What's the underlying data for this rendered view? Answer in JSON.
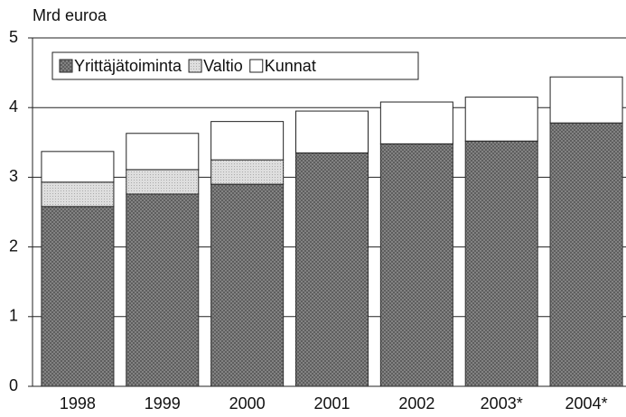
{
  "chart_data": {
    "type": "stacked_bar",
    "y_label": "Mrd euroa",
    "categories": [
      "1998",
      "1999",
      "2000",
      "2001",
      "2002",
      "2003*",
      "2004*"
    ],
    "series": [
      {
        "name": "Yrittäjätoiminta",
        "color": "#8c8c8c",
        "values": [
          2.58,
          2.76,
          2.9,
          3.35,
          3.48,
          3.52,
          3.78
        ]
      },
      {
        "name": "Valtio",
        "color": "#dedede",
        "values": [
          0.35,
          0.35,
          0.35,
          0,
          0,
          0,
          0
        ]
      },
      {
        "name": "Kunnat",
        "color": "#ffffff",
        "values": [
          0.44,
          0.52,
          0.55,
          0.6,
          0.6,
          0.63,
          0.66
        ]
      }
    ],
    "ylim": [
      0,
      5
    ],
    "yticks": [
      0,
      1,
      2,
      3,
      4,
      5
    ],
    "grid": true
  }
}
